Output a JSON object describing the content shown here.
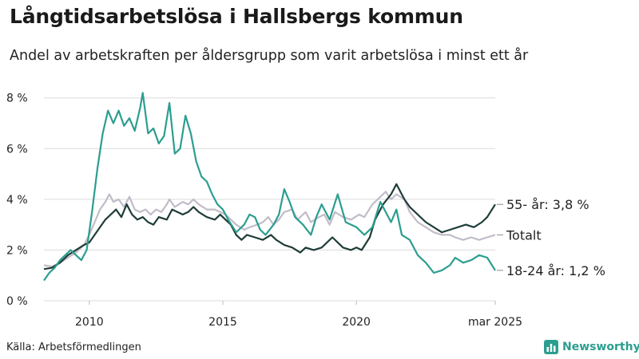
{
  "title": "Långtidsarbetslösa i Hallsbergs kommun",
  "subtitle": "Andel av arbetskraften per åldersgrupp som varit arbetslösa i minst ett år",
  "source": "Källa: Arbetsförmedlingen",
  "brand": {
    "name": "Newsworthy",
    "icon": "bar-chart-icon",
    "color": "#2b9e8f"
  },
  "chart_data": {
    "type": "line",
    "xlim": [
      2008.3,
      2025.2
    ],
    "ylim": [
      0,
      8.4
    ],
    "x_ticks": [
      {
        "x": 2010,
        "label": "2010"
      },
      {
        "x": 2015,
        "label": "2015"
      },
      {
        "x": 2020,
        "label": "2020"
      },
      {
        "x": 2025.2,
        "label": "mar 2025"
      }
    ],
    "y_ticks": [
      {
        "y": 0,
        "label": "0 %"
      },
      {
        "y": 2,
        "label": "2 %"
      },
      {
        "y": 4,
        "label": "4 %"
      },
      {
        "y": 6,
        "label": "6 %"
      },
      {
        "y": 8,
        "label": "8 %"
      }
    ],
    "grid": true,
    "series": [
      {
        "name": "Totalt",
        "label": "Totalt",
        "color": "#c2bcc8",
        "points": [
          [
            2008.3,
            1.4
          ],
          [
            2008.6,
            1.35
          ],
          [
            2008.9,
            1.5
          ],
          [
            2009.2,
            1.7
          ],
          [
            2009.5,
            1.9
          ],
          [
            2009.8,
            2.2
          ],
          [
            2010.0,
            2.6
          ],
          [
            2010.2,
            3.1
          ],
          [
            2010.4,
            3.6
          ],
          [
            2010.6,
            3.9
          ],
          [
            2010.75,
            4.2
          ],
          [
            2010.9,
            3.9
          ],
          [
            2011.1,
            4.0
          ],
          [
            2011.3,
            3.7
          ],
          [
            2011.5,
            4.1
          ],
          [
            2011.7,
            3.6
          ],
          [
            2011.9,
            3.5
          ],
          [
            2012.1,
            3.6
          ],
          [
            2012.3,
            3.4
          ],
          [
            2012.5,
            3.6
          ],
          [
            2012.7,
            3.5
          ],
          [
            2012.9,
            3.8
          ],
          [
            2013.0,
            4.0
          ],
          [
            2013.2,
            3.7
          ],
          [
            2013.5,
            3.9
          ],
          [
            2013.7,
            3.8
          ],
          [
            2013.9,
            4.0
          ],
          [
            2014.1,
            3.8
          ],
          [
            2014.4,
            3.6
          ],
          [
            2014.7,
            3.6
          ],
          [
            2014.9,
            3.5
          ],
          [
            2015.1,
            3.4
          ],
          [
            2015.3,
            3.2
          ],
          [
            2015.5,
            3.0
          ],
          [
            2015.8,
            2.8
          ],
          [
            2016.0,
            2.9
          ],
          [
            2016.3,
            3.0
          ],
          [
            2016.5,
            3.1
          ],
          [
            2016.7,
            3.3
          ],
          [
            2016.9,
            3.0
          ],
          [
            2017.1,
            3.2
          ],
          [
            2017.3,
            3.5
          ],
          [
            2017.6,
            3.6
          ],
          [
            2017.8,
            3.2
          ],
          [
            2018.1,
            3.5
          ],
          [
            2018.3,
            3.1
          ],
          [
            2018.6,
            3.3
          ],
          [
            2018.8,
            3.4
          ],
          [
            2019.0,
            3.0
          ],
          [
            2019.2,
            3.5
          ],
          [
            2019.5,
            3.3
          ],
          [
            2019.8,
            3.2
          ],
          [
            2020.1,
            3.4
          ],
          [
            2020.3,
            3.3
          ],
          [
            2020.6,
            3.8
          ],
          [
            2020.9,
            4.1
          ],
          [
            2021.1,
            4.3
          ],
          [
            2021.3,
            4.0
          ],
          [
            2021.5,
            4.2
          ],
          [
            2021.8,
            4.0
          ],
          [
            2022.0,
            3.5
          ],
          [
            2022.3,
            3.1
          ],
          [
            2022.6,
            2.9
          ],
          [
            2022.9,
            2.7
          ],
          [
            2023.2,
            2.6
          ],
          [
            2023.5,
            2.6
          ],
          [
            2023.7,
            2.5
          ],
          [
            2024.0,
            2.4
          ],
          [
            2024.3,
            2.5
          ],
          [
            2024.6,
            2.4
          ],
          [
            2024.9,
            2.5
          ],
          [
            2025.2,
            2.6
          ]
        ]
      },
      {
        "name": "55- år",
        "label": "55- år: 3,8 %",
        "color": "#1f3d38",
        "points": [
          [
            2008.3,
            1.25
          ],
          [
            2008.6,
            1.3
          ],
          [
            2008.9,
            1.5
          ],
          [
            2009.2,
            1.8
          ],
          [
            2009.5,
            2.0
          ],
          [
            2009.8,
            2.2
          ],
          [
            2010.0,
            2.3
          ],
          [
            2010.2,
            2.6
          ],
          [
            2010.4,
            2.9
          ],
          [
            2010.6,
            3.2
          ],
          [
            2010.8,
            3.4
          ],
          [
            2011.0,
            3.6
          ],
          [
            2011.2,
            3.3
          ],
          [
            2011.4,
            3.8
          ],
          [
            2011.6,
            3.4
          ],
          [
            2011.8,
            3.2
          ],
          [
            2012.0,
            3.3
          ],
          [
            2012.2,
            3.1
          ],
          [
            2012.4,
            3.0
          ],
          [
            2012.6,
            3.3
          ],
          [
            2012.9,
            3.2
          ],
          [
            2013.1,
            3.6
          ],
          [
            2013.3,
            3.5
          ],
          [
            2013.5,
            3.4
          ],
          [
            2013.7,
            3.5
          ],
          [
            2013.9,
            3.7
          ],
          [
            2014.1,
            3.5
          ],
          [
            2014.4,
            3.3
          ],
          [
            2014.7,
            3.2
          ],
          [
            2014.9,
            3.4
          ],
          [
            2015.1,
            3.2
          ],
          [
            2015.3,
            3.0
          ],
          [
            2015.5,
            2.6
          ],
          [
            2015.7,
            2.4
          ],
          [
            2015.9,
            2.6
          ],
          [
            2016.2,
            2.5
          ],
          [
            2016.5,
            2.4
          ],
          [
            2016.8,
            2.6
          ],
          [
            2017.0,
            2.4
          ],
          [
            2017.3,
            2.2
          ],
          [
            2017.6,
            2.1
          ],
          [
            2017.9,
            1.9
          ],
          [
            2018.1,
            2.1
          ],
          [
            2018.4,
            2.0
          ],
          [
            2018.7,
            2.1
          ],
          [
            2018.9,
            2.3
          ],
          [
            2019.1,
            2.5
          ],
          [
            2019.3,
            2.3
          ],
          [
            2019.5,
            2.1
          ],
          [
            2019.8,
            2.0
          ],
          [
            2020.0,
            2.1
          ],
          [
            2020.2,
            2.0
          ],
          [
            2020.5,
            2.5
          ],
          [
            2020.7,
            3.2
          ],
          [
            2021.0,
            3.8
          ],
          [
            2021.3,
            4.2
          ],
          [
            2021.5,
            4.6
          ],
          [
            2021.8,
            4.0
          ],
          [
            2022.0,
            3.7
          ],
          [
            2022.3,
            3.4
          ],
          [
            2022.6,
            3.1
          ],
          [
            2022.9,
            2.9
          ],
          [
            2023.2,
            2.7
          ],
          [
            2023.5,
            2.8
          ],
          [
            2023.8,
            2.9
          ],
          [
            2024.1,
            3.0
          ],
          [
            2024.4,
            2.9
          ],
          [
            2024.7,
            3.1
          ],
          [
            2024.9,
            3.3
          ],
          [
            2025.2,
            3.8
          ]
        ]
      },
      {
        "name": "18-24 år",
        "label": "18-24 år: 1,2 %",
        "color": "#2b9e8f",
        "points": [
          [
            2008.3,
            0.8
          ],
          [
            2008.5,
            1.1
          ],
          [
            2008.7,
            1.3
          ],
          [
            2008.9,
            1.6
          ],
          [
            2009.1,
            1.8
          ],
          [
            2009.3,
            2.0
          ],
          [
            2009.5,
            1.8
          ],
          [
            2009.7,
            1.6
          ],
          [
            2009.9,
            2.0
          ],
          [
            2010.1,
            3.5
          ],
          [
            2010.3,
            5.2
          ],
          [
            2010.5,
            6.6
          ],
          [
            2010.7,
            7.5
          ],
          [
            2010.9,
            7.0
          ],
          [
            2011.1,
            7.5
          ],
          [
            2011.3,
            6.9
          ],
          [
            2011.5,
            7.2
          ],
          [
            2011.7,
            6.7
          ],
          [
            2011.9,
            7.6
          ],
          [
            2012.0,
            8.2
          ],
          [
            2012.2,
            6.6
          ],
          [
            2012.4,
            6.8
          ],
          [
            2012.6,
            6.2
          ],
          [
            2012.8,
            6.5
          ],
          [
            2013.0,
            7.8
          ],
          [
            2013.2,
            5.8
          ],
          [
            2013.4,
            6.0
          ],
          [
            2013.6,
            7.3
          ],
          [
            2013.8,
            6.6
          ],
          [
            2014.0,
            5.5
          ],
          [
            2014.2,
            4.9
          ],
          [
            2014.4,
            4.7
          ],
          [
            2014.6,
            4.2
          ],
          [
            2014.8,
            3.8
          ],
          [
            2015.0,
            3.6
          ],
          [
            2015.2,
            3.2
          ],
          [
            2015.5,
            2.7
          ],
          [
            2015.8,
            3.0
          ],
          [
            2016.0,
            3.4
          ],
          [
            2016.2,
            3.3
          ],
          [
            2016.4,
            2.8
          ],
          [
            2016.6,
            2.6
          ],
          [
            2016.9,
            3.0
          ],
          [
            2017.1,
            3.4
          ],
          [
            2017.3,
            4.4
          ],
          [
            2017.5,
            3.9
          ],
          [
            2017.7,
            3.3
          ],
          [
            2018.0,
            3.0
          ],
          [
            2018.3,
            2.6
          ],
          [
            2018.5,
            3.3
          ],
          [
            2018.7,
            3.8
          ],
          [
            2019.0,
            3.2
          ],
          [
            2019.3,
            4.2
          ],
          [
            2019.6,
            3.1
          ],
          [
            2020.0,
            2.9
          ],
          [
            2020.3,
            2.6
          ],
          [
            2020.6,
            2.9
          ],
          [
            2020.9,
            3.9
          ],
          [
            2021.1,
            3.5
          ],
          [
            2021.3,
            3.1
          ],
          [
            2021.5,
            3.6
          ],
          [
            2021.7,
            2.6
          ],
          [
            2022.0,
            2.4
          ],
          [
            2022.3,
            1.8
          ],
          [
            2022.6,
            1.5
          ],
          [
            2022.9,
            1.1
          ],
          [
            2023.2,
            1.2
          ],
          [
            2023.5,
            1.4
          ],
          [
            2023.7,
            1.7
          ],
          [
            2024.0,
            1.5
          ],
          [
            2024.3,
            1.6
          ],
          [
            2024.6,
            1.8
          ],
          [
            2024.9,
            1.7
          ],
          [
            2025.2,
            1.2
          ]
        ]
      }
    ]
  }
}
